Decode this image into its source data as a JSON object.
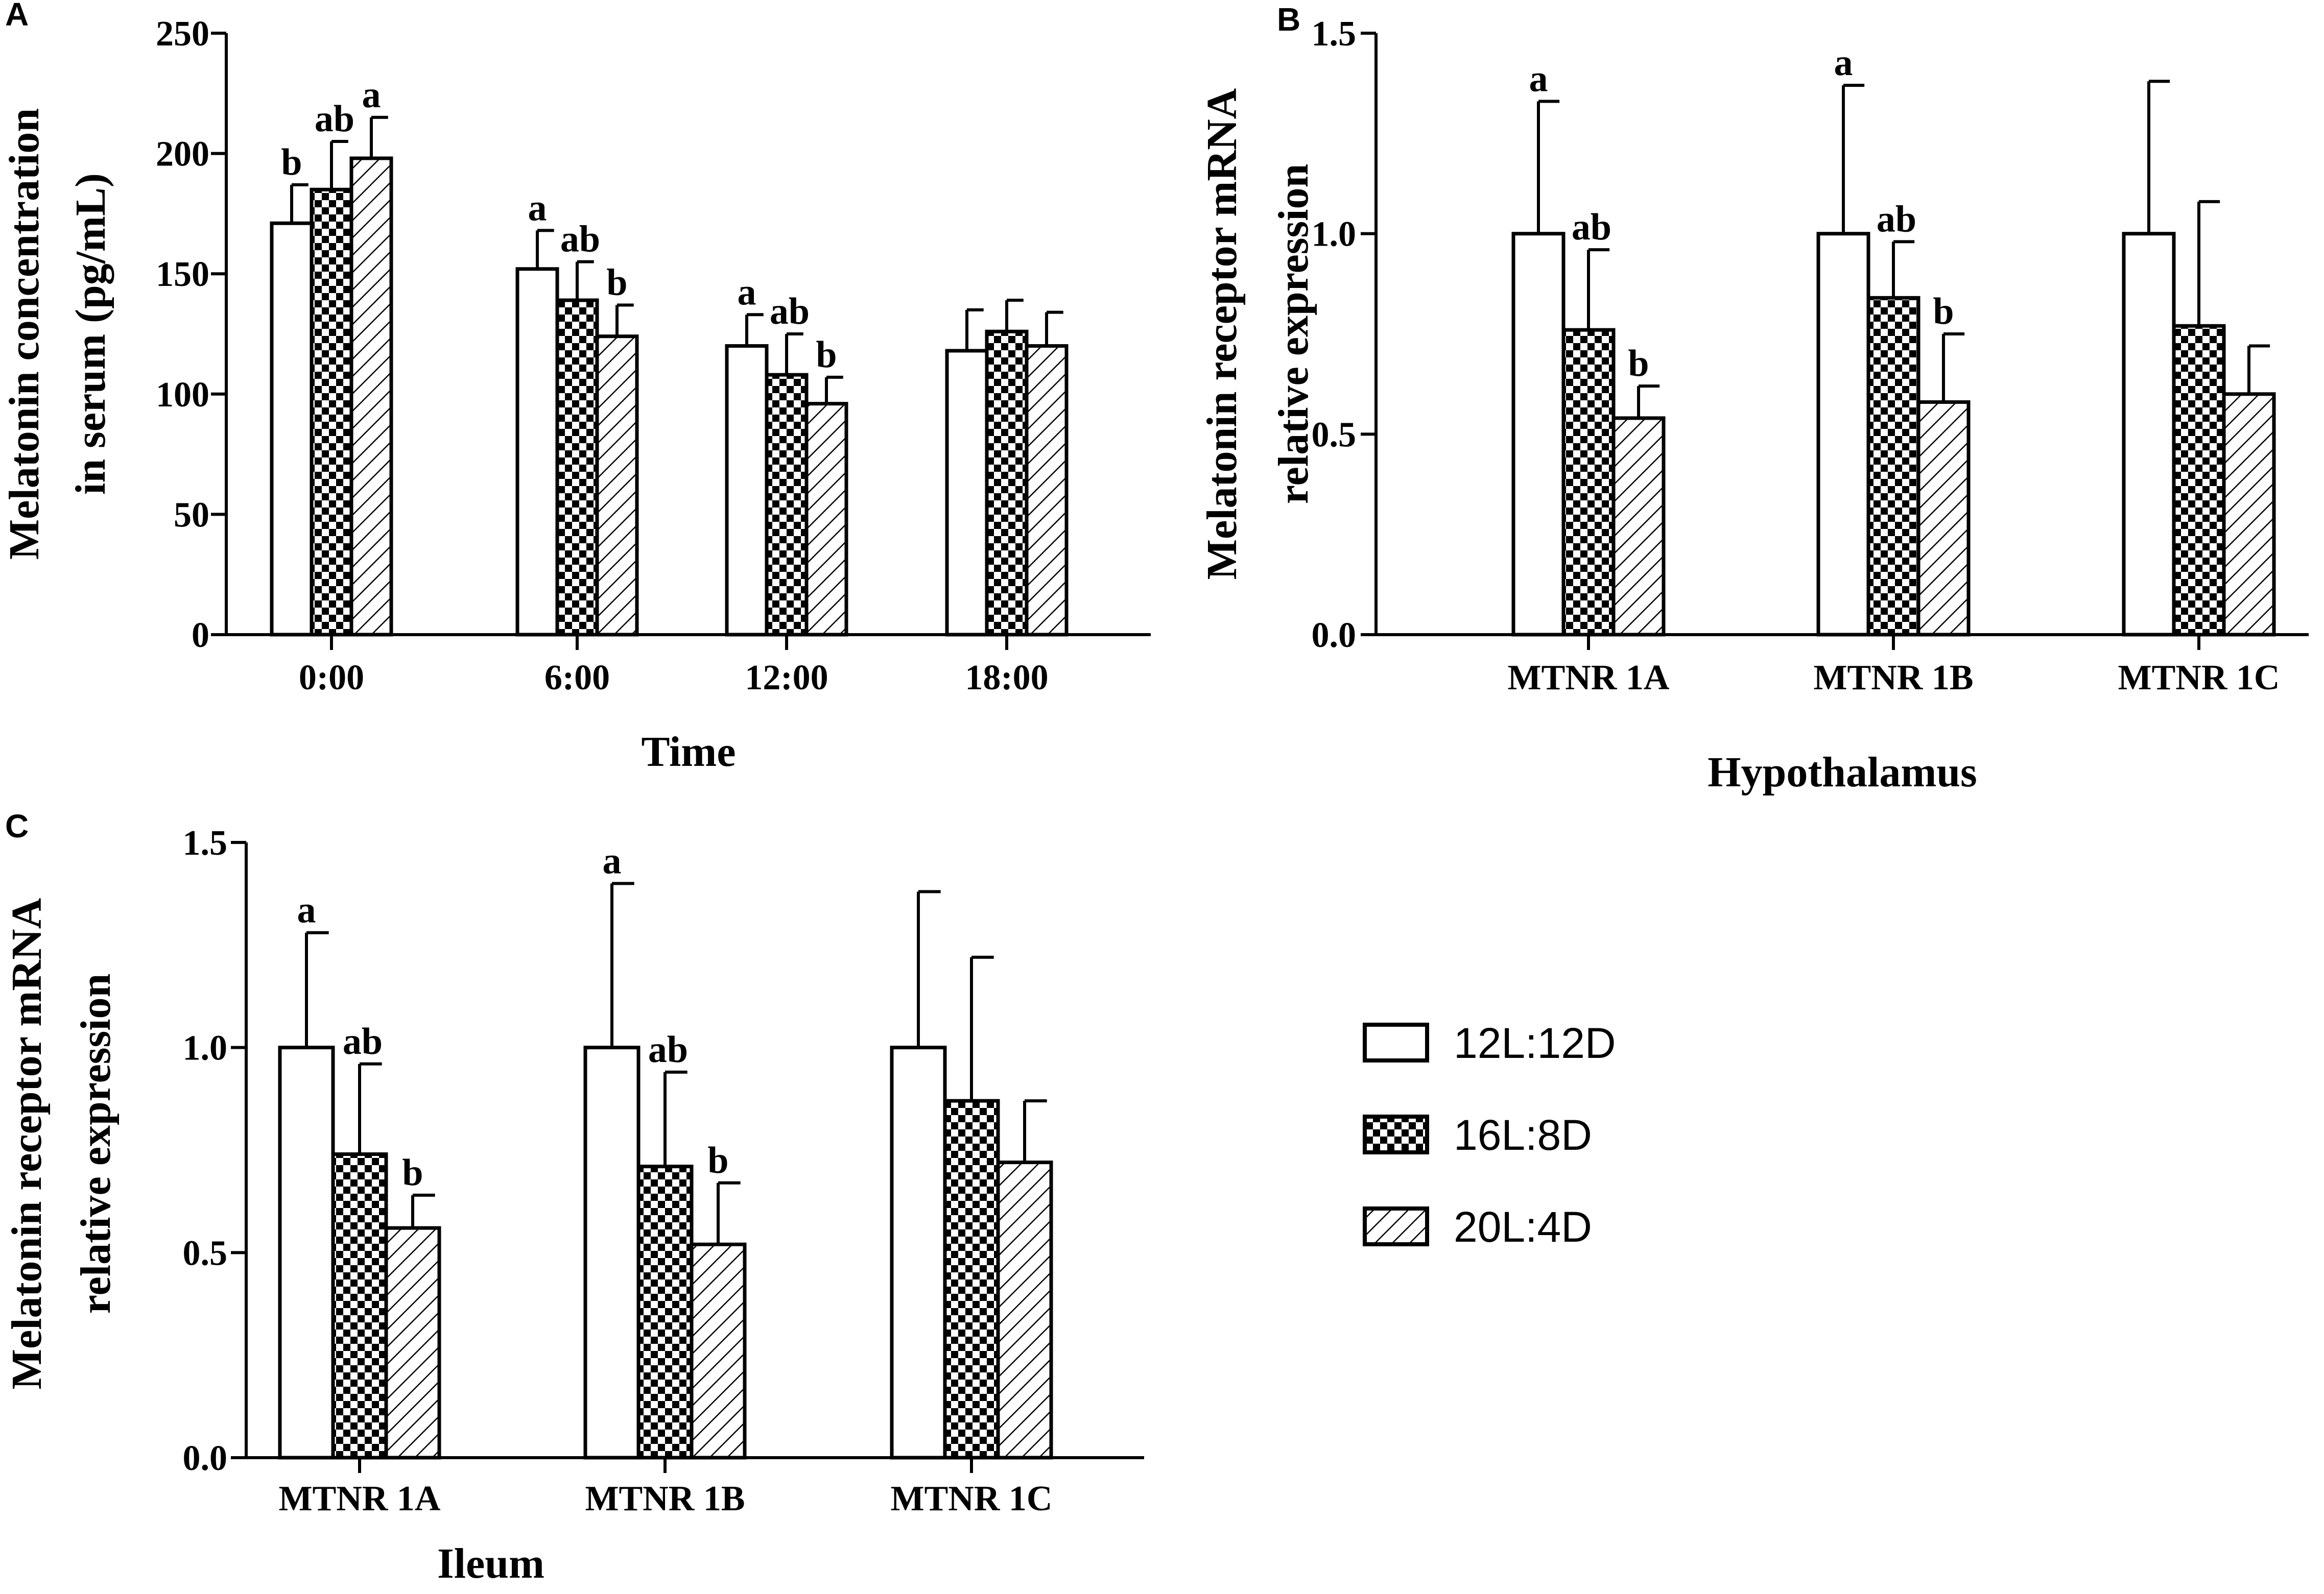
{
  "figure": {
    "background": "#ffffff",
    "ink": "#000000"
  },
  "legend": {
    "entries": [
      {
        "label": "12L:12D",
        "pattern": "open"
      },
      {
        "label": "16L:8D",
        "pattern": "checker"
      },
      {
        "label": "20L:4D",
        "pattern": "hatch"
      }
    ]
  },
  "chart_data": [
    {
      "panel": "A",
      "type": "bar",
      "title": "",
      "xlabel": "Time",
      "ylabel_lines": [
        "Melatonin concentration",
        "in serum (pg/mL)"
      ],
      "ylim": [
        0,
        250
      ],
      "yticks": [
        0,
        50,
        100,
        150,
        200,
        250
      ],
      "ytick_labels": [
        "0",
        "50",
        "100",
        "150",
        "200",
        "250"
      ],
      "categories": [
        "0:00",
        "6:00",
        "12:00",
        "18:00"
      ],
      "series": [
        {
          "name": "12L:12D",
          "values": [
            171,
            152,
            120,
            118
          ],
          "errors": [
            16,
            16,
            13,
            17
          ],
          "labels": [
            "b",
            "a",
            "a",
            ""
          ]
        },
        {
          "name": "16L:8D",
          "values": [
            185,
            139,
            108,
            126
          ],
          "errors": [
            20,
            16,
            17,
            13
          ],
          "labels": [
            "ab",
            "ab",
            "ab",
            ""
          ]
        },
        {
          "name": "20L:4D",
          "values": [
            198,
            124,
            96,
            120
          ],
          "errors": [
            17,
            13,
            11,
            14
          ],
          "labels": [
            "a",
            "b",
            "b",
            ""
          ]
        }
      ]
    },
    {
      "panel": "B",
      "type": "bar",
      "title": "",
      "xlabel": "Hypothalamus",
      "ylabel_lines": [
        "Melatonin receptor mRNA",
        "relative expression"
      ],
      "ylim": [
        0,
        1.5
      ],
      "yticks": [
        0,
        0.5,
        1.0,
        1.5
      ],
      "ytick_labels": [
        "0.0",
        "0.5",
        "1.0",
        "1.5"
      ],
      "categories": [
        "MTNR 1A",
        "MTNR 1B",
        "MTNR 1C"
      ],
      "series": [
        {
          "name": "12L:12D",
          "values": [
            1.0,
            1.0,
            1.0
          ],
          "errors": [
            0.33,
            0.37,
            0.38
          ],
          "labels": [
            "a",
            "a",
            ""
          ]
        },
        {
          "name": "16L:8D",
          "values": [
            0.76,
            0.84,
            0.77
          ],
          "errors": [
            0.2,
            0.14,
            0.31
          ],
          "labels": [
            "ab",
            "ab",
            ""
          ]
        },
        {
          "name": "20L:4D",
          "values": [
            0.54,
            0.58,
            0.6
          ],
          "errors": [
            0.08,
            0.17,
            0.12
          ],
          "labels": [
            "b",
            "b",
            ""
          ]
        }
      ]
    },
    {
      "panel": "C",
      "type": "bar",
      "title": "",
      "xlabel": "Ileum",
      "ylabel_lines": [
        "Melatonin receptor mRNA",
        "relative expression"
      ],
      "ylim": [
        0,
        1.5
      ],
      "yticks": [
        0,
        0.5,
        1.0,
        1.5
      ],
      "ytick_labels": [
        "0.0",
        "0.5",
        "1.0",
        "1.5"
      ],
      "categories": [
        "MTNR 1A",
        "MTNR 1B",
        "MTNR 1C"
      ],
      "series": [
        {
          "name": "12L:12D",
          "values": [
            1.0,
            1.0,
            1.0
          ],
          "errors": [
            0.28,
            0.4,
            0.38
          ],
          "labels": [
            "a",
            "a",
            ""
          ]
        },
        {
          "name": "16L:8D",
          "values": [
            0.74,
            0.71,
            0.87
          ],
          "errors": [
            0.22,
            0.23,
            0.35
          ],
          "labels": [
            "ab",
            "ab",
            ""
          ]
        },
        {
          "name": "20L:4D",
          "values": [
            0.56,
            0.52,
            0.72
          ],
          "errors": [
            0.08,
            0.15,
            0.15
          ],
          "labels": [
            "b",
            "b",
            ""
          ]
        }
      ]
    }
  ]
}
